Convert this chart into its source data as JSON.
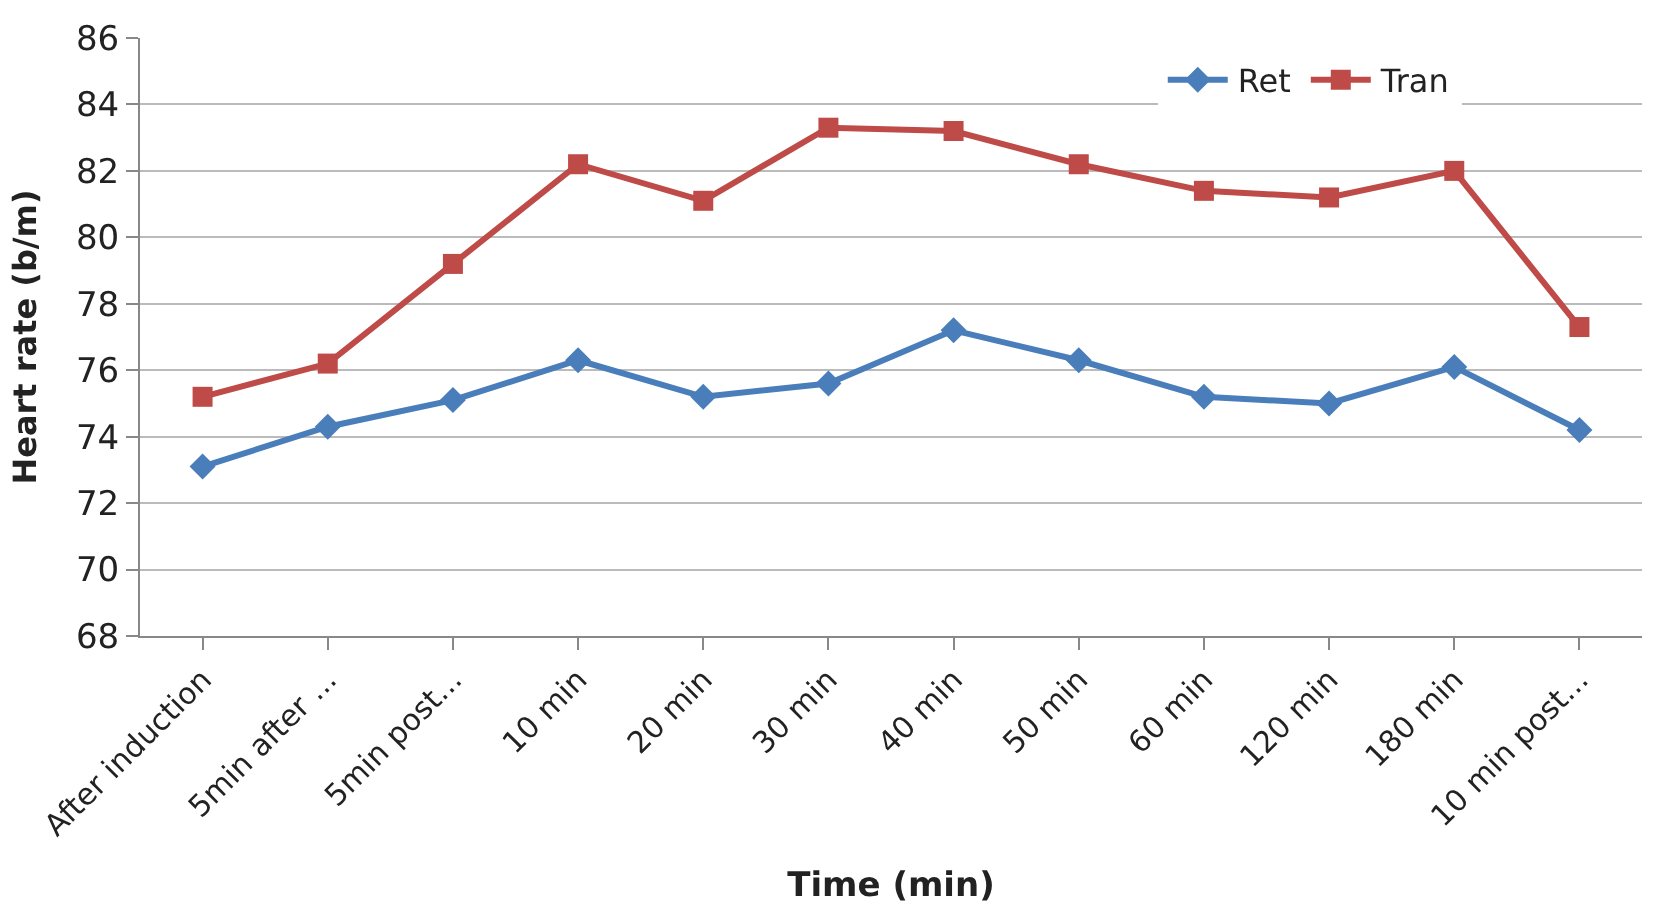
{
  "chart_data": {
    "type": "line",
    "xlabel": "Time (min)",
    "ylabel": "Heart rate (b/m)",
    "categories": [
      "After induction",
      "5min after ...",
      "5min post...",
      "10 min",
      "20 min",
      "30 min",
      "40 min",
      "50 min",
      "60 min",
      "120 min",
      "180 min",
      "10 min post..."
    ],
    "series": [
      {
        "name": "Ret",
        "color": "#4a7ebb",
        "marker": "diamond",
        "values": [
          73.1,
          74.3,
          75.1,
          76.3,
          75.2,
          75.6,
          77.2,
          76.3,
          75.2,
          75.0,
          76.1,
          74.2
        ]
      },
      {
        "name": "Tran",
        "color": "#be4b48",
        "marker": "square",
        "values": [
          75.2,
          76.2,
          79.2,
          82.2,
          81.1,
          83.3,
          83.2,
          82.2,
          81.4,
          81.2,
          82.0,
          77.3
        ]
      }
    ],
    "ylim": [
      68,
      86
    ],
    "yticks": [
      68,
      70,
      72,
      74,
      76,
      78,
      80,
      82,
      84,
      86
    ],
    "grid": "y",
    "legend": "top right",
    "line_style": "solid"
  }
}
